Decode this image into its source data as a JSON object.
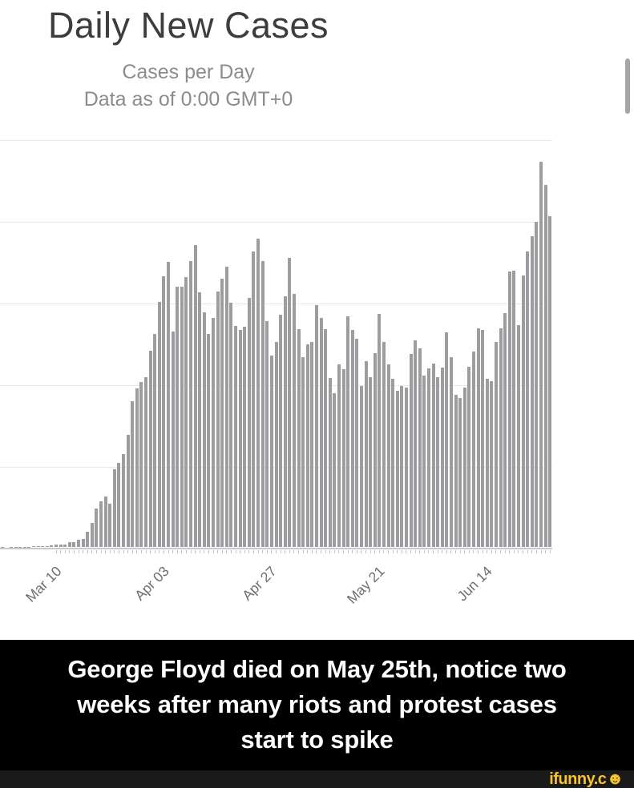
{
  "header": {
    "title": "Daily New Cases",
    "subtitle": "Cases per Day",
    "data_note": "Data as of 0:00 GMT+0"
  },
  "chart_data": {
    "type": "bar",
    "title": "Daily New Cases",
    "subtitle": "Cases per Day",
    "x": [
      "Feb 27",
      "Feb 28",
      "Feb 29",
      "Mar 01",
      "Mar 02",
      "Mar 03",
      "Mar 04",
      "Mar 05",
      "Mar 06",
      "Mar 07",
      "Mar 08",
      "Mar 09",
      "Mar 10",
      "Mar 11",
      "Mar 12",
      "Mar 13",
      "Mar 14",
      "Mar 15",
      "Mar 16",
      "Mar 17",
      "Mar 18",
      "Mar 19",
      "Mar 20",
      "Mar 21",
      "Mar 22",
      "Mar 23",
      "Mar 24",
      "Mar 25",
      "Mar 26",
      "Mar 27",
      "Mar 28",
      "Mar 29",
      "Mar 30",
      "Mar 31",
      "Apr 01",
      "Apr 02",
      "Apr 03",
      "Apr 04",
      "Apr 05",
      "Apr 06",
      "Apr 07",
      "Apr 08",
      "Apr 09",
      "Apr 10",
      "Apr 11",
      "Apr 12",
      "Apr 13",
      "Apr 14",
      "Apr 15",
      "Apr 16",
      "Apr 17",
      "Apr 18",
      "Apr 19",
      "Apr 20",
      "Apr 21",
      "Apr 22",
      "Apr 23",
      "Apr 24",
      "Apr 25",
      "Apr 26",
      "Apr 27",
      "Apr 28",
      "Apr 29",
      "Apr 30",
      "May 01",
      "May 02",
      "May 03",
      "May 04",
      "May 05",
      "May 06",
      "May 07",
      "May 08",
      "May 09",
      "May 10",
      "May 11",
      "May 12",
      "May 13",
      "May 14",
      "May 15",
      "May 16",
      "May 17",
      "May 18",
      "May 19",
      "May 20",
      "May 21",
      "May 22",
      "May 23",
      "May 24",
      "May 25",
      "May 26",
      "May 27",
      "May 28",
      "May 29",
      "May 30",
      "May 31",
      "Jun 01",
      "Jun 02",
      "Jun 03",
      "Jun 04",
      "Jun 05",
      "Jun 06",
      "Jun 07",
      "Jun 08",
      "Jun 09",
      "Jun 10",
      "Jun 11",
      "Jun 12",
      "Jun 13",
      "Jun 14",
      "Jun 15",
      "Jun 16",
      "Jun 17",
      "Jun 18",
      "Jun 19",
      "Jun 20",
      "Jun 21",
      "Jun 22",
      "Jun 23",
      "Jun 24",
      "Jun 25",
      "Jun 26",
      "Jun 27",
      "Jun 28"
    ],
    "values": [
      18,
      5,
      25,
      30,
      14,
      22,
      34,
      63,
      98,
      116,
      106,
      163,
      290,
      310,
      330,
      550,
      590,
      840,
      980,
      1750,
      2850,
      4500,
      5400,
      5900,
      5100,
      9100,
      9900,
      10900,
      13200,
      17100,
      18600,
      19400,
      20000,
      23100,
      25000,
      28800,
      31800,
      33500,
      25300,
      30600,
      30600,
      31700,
      33600,
      35500,
      29900,
      27600,
      25000,
      26900,
      30000,
      31500,
      32900,
      28700,
      26000,
      25500,
      25900,
      29300,
      34700,
      36200,
      33600,
      26500,
      22500,
      24100,
      27300,
      29500,
      34000,
      29700,
      25600,
      22300,
      23800,
      24100,
      28400,
      26900,
      25600,
      19900,
      18100,
      21500,
      20900,
      27100,
      25500,
      24500,
      18900,
      21800,
      20000,
      22800,
      27400,
      24100,
      21500,
      19800,
      18400,
      18900,
      18700,
      22700,
      24300,
      23300,
      20100,
      21000,
      21600,
      20000,
      21100,
      25200,
      22300,
      17900,
      17500,
      18700,
      21200,
      23000,
      25700,
      25500,
      19800,
      19500,
      24100,
      25700,
      27500,
      32400,
      32500,
      26100,
      31900,
      34700,
      36500,
      38200,
      45300,
      42500,
      38900
    ],
    "x_tick_labels": [
      "Mar 10",
      "Apr 03",
      "Apr 27",
      "May 21",
      "Jun 14"
    ],
    "x_tick_every": 24,
    "x_tick_first_index": 12,
    "ylabel": "",
    "xlabel": "",
    "ylim": [
      0,
      48000
    ],
    "y_axis_labels_visible": false,
    "gridlines": "horizontal",
    "gridline_count": 6,
    "legend": "none",
    "bar_color": "#9d9da0"
  },
  "caption": {
    "line1": "George Floyd died on May 25th, notice two",
    "line2": "weeks after many riots and protest cases",
    "line3": "start to spike",
    "full_text": "George Floyd died on May 25th, notice two weeks after many riots and protest cases start to spike"
  },
  "watermark": {
    "text": "ifunny.c",
    "smiley": "☻",
    "color": "#f9c32f"
  },
  "colors": {
    "background": "#ffffff",
    "bar": "#9d9da0",
    "gridline": "#e9e9e9",
    "axis_line": "#c9c9d4",
    "title_text": "#3d3d3d",
    "subtitle_text": "#8c8c8c",
    "tick_label_text": "#6e6e6e",
    "caption_band": "#000000",
    "caption_text": "#ffffff",
    "watermark_band": "#1a1a1a",
    "watermark_text": "#f9c32f",
    "scrollbar": "#a6a6a6"
  }
}
